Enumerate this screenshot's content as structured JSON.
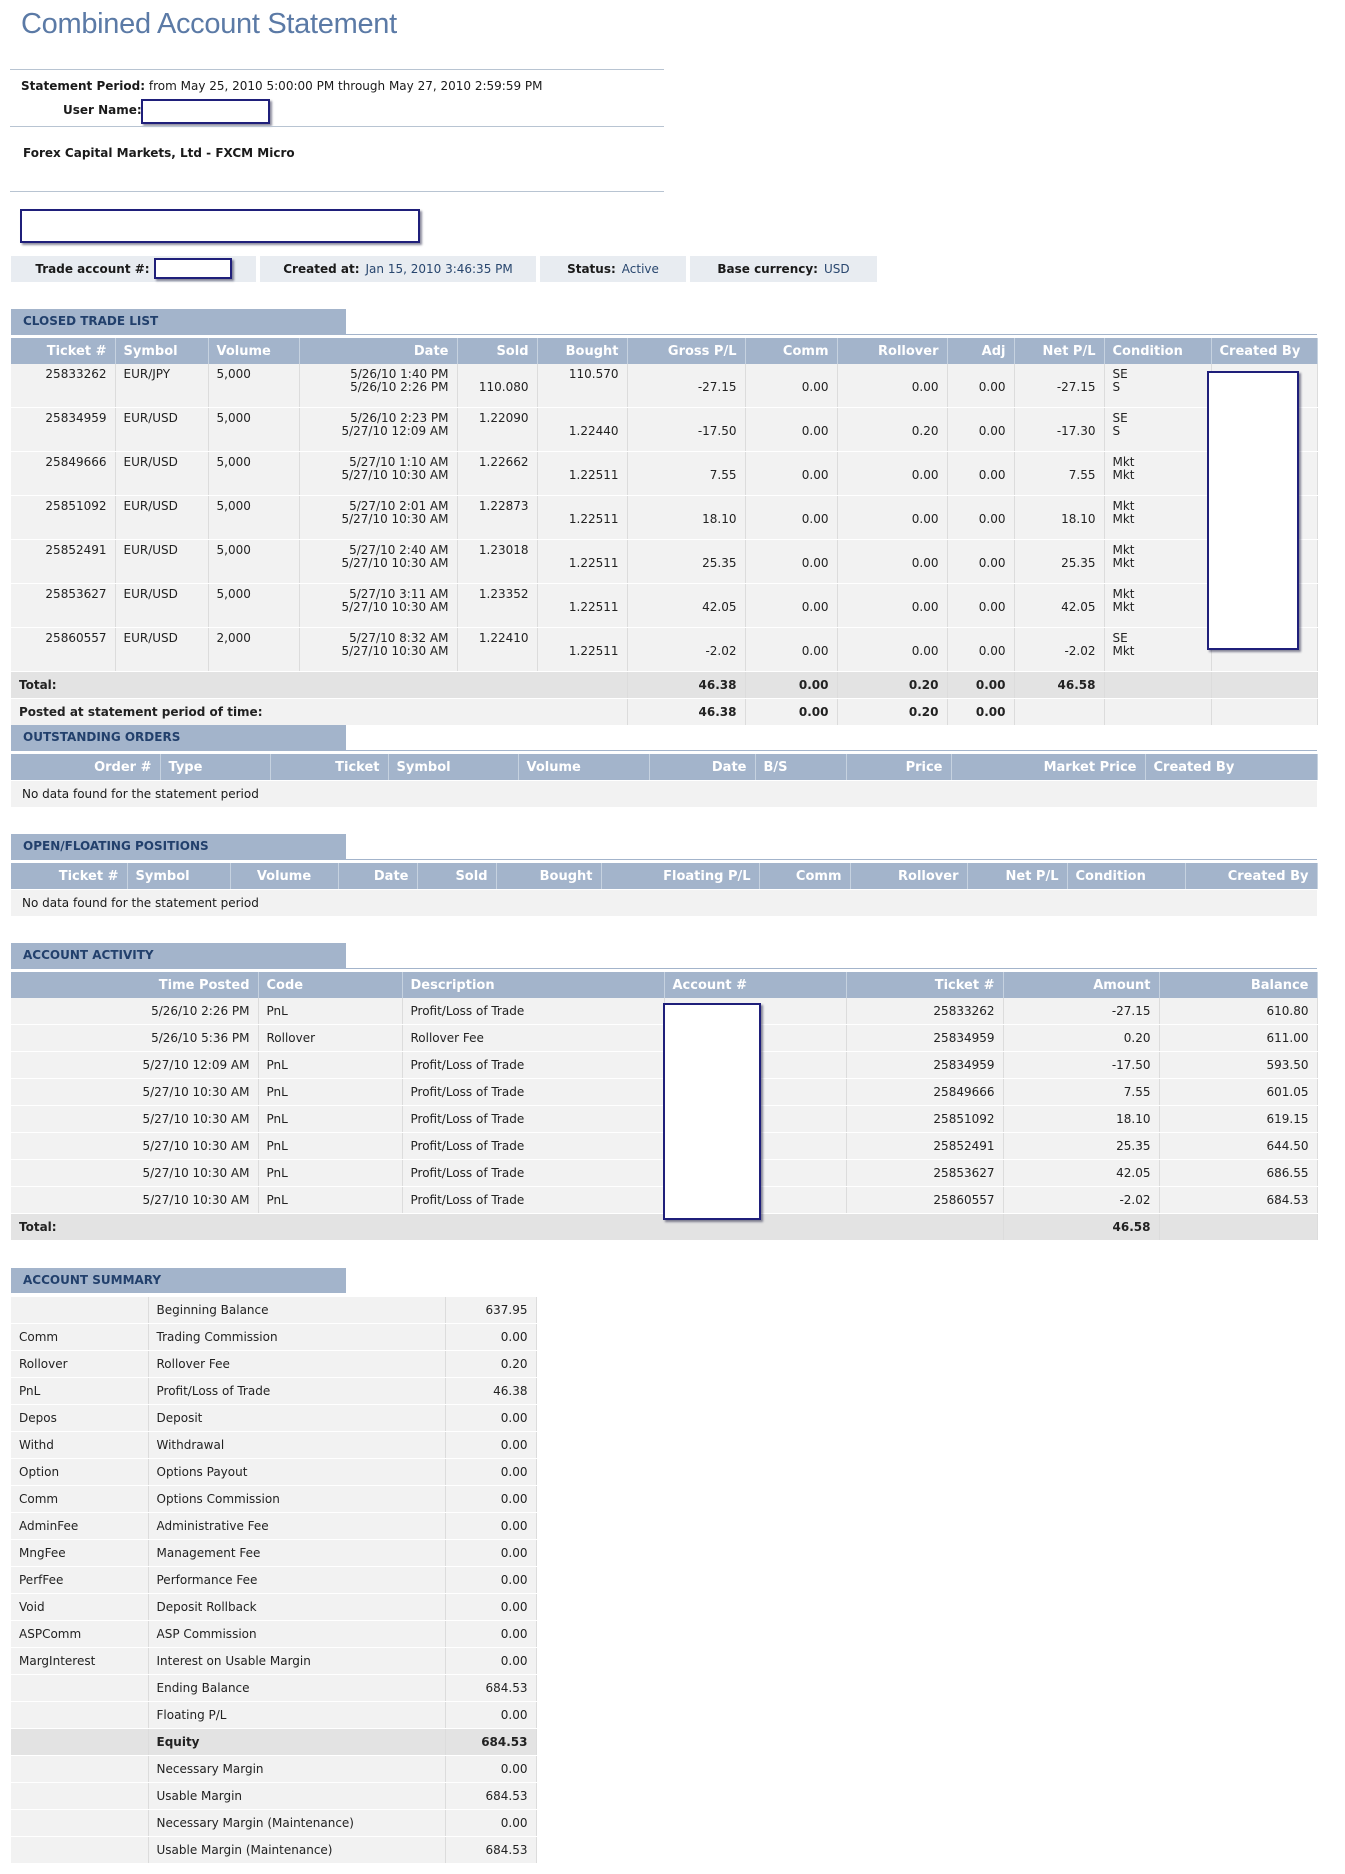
{
  "title": "Combined Account Statement",
  "statement": {
    "period_label": "Statement Period:",
    "period_value": "from May 25, 2010 5:00:00 PM through May 27, 2010 2:59:59 PM",
    "user_label": "User Name:",
    "broker": "Forex Capital Markets, Ltd - FXCM Micro"
  },
  "account_bar": {
    "trade_account_label": "Trade account #:",
    "created_label": "Created at:",
    "created_value": "Jan 15, 2010 3:46:35 PM",
    "status_label": "Status:",
    "status_value": "Active",
    "currency_label": "Base currency:",
    "currency_value": "USD"
  },
  "closed_trades": {
    "header": "CLOSED TRADE LIST",
    "columns": [
      "Ticket #",
      "Symbol",
      "Volume",
      "Date",
      "Sold",
      "Bought",
      "Gross P/L",
      "Comm",
      "Rollover",
      "Adj",
      "Net P/L",
      "Condition",
      "Created By"
    ],
    "rows": [
      {
        "ticket": "25833262",
        "symbol": "EUR/JPY",
        "volume": "5,000",
        "date1": "5/26/10 1:40 PM",
        "date2": "5/26/10 2:26 PM",
        "sold1": "",
        "sold2": "110.080",
        "bought1": "110.570",
        "bought2": "",
        "gross": "-27.15",
        "comm": "0.00",
        "rollover": "0.00",
        "adj": "0.00",
        "net": "-27.15",
        "cond1": "SE",
        "cond2": "S"
      },
      {
        "ticket": "25834959",
        "symbol": "EUR/USD",
        "volume": "5,000",
        "date1": "5/26/10 2:23 PM",
        "date2": "5/27/10 12:09 AM",
        "sold1": "1.22090",
        "sold2": "",
        "bought1": "",
        "bought2": "1.22440",
        "gross": "-17.50",
        "comm": "0.00",
        "rollover": "0.20",
        "adj": "0.00",
        "net": "-17.30",
        "cond1": "SE",
        "cond2": "S"
      },
      {
        "ticket": "25849666",
        "symbol": "EUR/USD",
        "volume": "5,000",
        "date1": "5/27/10 1:10 AM",
        "date2": "5/27/10 10:30 AM",
        "sold1": "1.22662",
        "sold2": "",
        "bought1": "",
        "bought2": "1.22511",
        "gross": "7.55",
        "comm": "0.00",
        "rollover": "0.00",
        "adj": "0.00",
        "net": "7.55",
        "cond1": "Mkt",
        "cond2": "Mkt"
      },
      {
        "ticket": "25851092",
        "symbol": "EUR/USD",
        "volume": "5,000",
        "date1": "5/27/10 2:01 AM",
        "date2": "5/27/10 10:30 AM",
        "sold1": "1.22873",
        "sold2": "",
        "bought1": "",
        "bought2": "1.22511",
        "gross": "18.10",
        "comm": "0.00",
        "rollover": "0.00",
        "adj": "0.00",
        "net": "18.10",
        "cond1": "Mkt",
        "cond2": "Mkt"
      },
      {
        "ticket": "25852491",
        "symbol": "EUR/USD",
        "volume": "5,000",
        "date1": "5/27/10 2:40 AM",
        "date2": "5/27/10 10:30 AM",
        "sold1": "1.23018",
        "sold2": "",
        "bought1": "",
        "bought2": "1.22511",
        "gross": "25.35",
        "comm": "0.00",
        "rollover": "0.00",
        "adj": "0.00",
        "net": "25.35",
        "cond1": "Mkt",
        "cond2": "Mkt"
      },
      {
        "ticket": "25853627",
        "symbol": "EUR/USD",
        "volume": "5,000",
        "date1": "5/27/10 3:11 AM",
        "date2": "5/27/10 10:30 AM",
        "sold1": "1.23352",
        "sold2": "",
        "bought1": "",
        "bought2": "1.22511",
        "gross": "42.05",
        "comm": "0.00",
        "rollover": "0.00",
        "adj": "0.00",
        "net": "42.05",
        "cond1": "Mkt",
        "cond2": "Mkt"
      },
      {
        "ticket": "25860557",
        "symbol": "EUR/USD",
        "volume": "2,000",
        "date1": "5/27/10 8:32 AM",
        "date2": "5/27/10 10:30 AM",
        "sold1": "1.22410",
        "sold2": "",
        "bought1": "",
        "bought2": "1.22511",
        "gross": "-2.02",
        "comm": "0.00",
        "rollover": "0.00",
        "adj": "0.00",
        "net": "-2.02",
        "cond1": "SE",
        "cond2": "Mkt"
      }
    ],
    "total": {
      "label": "Total:",
      "gross": "46.38",
      "comm": "0.00",
      "rollover": "0.20",
      "adj": "0.00",
      "net": "46.58"
    },
    "posted": {
      "label": "Posted at statement period of time:",
      "gross": "46.38",
      "comm": "0.00",
      "rollover": "0.20",
      "adj": "0.00"
    }
  },
  "outstanding_orders": {
    "header": "OUTSTANDING ORDERS",
    "columns": [
      "Order #",
      "Type",
      "Ticket",
      "Symbol",
      "Volume",
      "Date",
      "B/S",
      "Price",
      "Market Price",
      "Created By"
    ],
    "empty": "No data found for the statement period"
  },
  "open_positions": {
    "header": "OPEN/FLOATING POSITIONS",
    "columns": [
      "Ticket #",
      "Symbol",
      "Volume",
      "Date",
      "Sold",
      "Bought",
      "Floating P/L",
      "Comm",
      "Rollover",
      "Net P/L",
      "Condition",
      "Created By"
    ],
    "empty": "No data found for the statement period"
  },
  "account_activity": {
    "header": "ACCOUNT ACTIVITY",
    "columns": [
      "Time Posted",
      "Code",
      "Description",
      "Account #",
      "Ticket #",
      "Amount",
      "Balance"
    ],
    "rows": [
      {
        "time": "5/26/10 2:26 PM",
        "code": "PnL",
        "desc": "Profit/Loss of Trade",
        "ticket": "25833262",
        "amount": "-27.15",
        "balance": "610.80"
      },
      {
        "time": "5/26/10 5:36 PM",
        "code": "Rollover",
        "desc": "Rollover Fee",
        "ticket": "25834959",
        "amount": "0.20",
        "balance": "611.00"
      },
      {
        "time": "5/27/10 12:09 AM",
        "code": "PnL",
        "desc": "Profit/Loss of Trade",
        "ticket": "25834959",
        "amount": "-17.50",
        "balance": "593.50"
      },
      {
        "time": "5/27/10 10:30 AM",
        "code": "PnL",
        "desc": "Profit/Loss of Trade",
        "ticket": "25849666",
        "amount": "7.55",
        "balance": "601.05"
      },
      {
        "time": "5/27/10 10:30 AM",
        "code": "PnL",
        "desc": "Profit/Loss of Trade",
        "ticket": "25851092",
        "amount": "18.10",
        "balance": "619.15"
      },
      {
        "time": "5/27/10 10:30 AM",
        "code": "PnL",
        "desc": "Profit/Loss of Trade",
        "ticket": "25852491",
        "amount": "25.35",
        "balance": "644.50"
      },
      {
        "time": "5/27/10 10:30 AM",
        "code": "PnL",
        "desc": "Profit/Loss of Trade",
        "ticket": "25853627",
        "amount": "42.05",
        "balance": "686.55"
      },
      {
        "time": "5/27/10 10:30 AM",
        "code": "PnL",
        "desc": "Profit/Loss of Trade",
        "ticket": "25860557",
        "amount": "-2.02",
        "balance": "684.53"
      }
    ],
    "total": {
      "label": "Total:",
      "amount": "46.58"
    }
  },
  "account_summary": {
    "header": "ACCOUNT SUMMARY",
    "rows": [
      {
        "code": "",
        "desc": "Beginning Balance",
        "value": "637.95"
      },
      {
        "code": "Comm",
        "desc": "Trading Commission",
        "value": "0.00"
      },
      {
        "code": "Rollover",
        "desc": "Rollover Fee",
        "value": "0.20"
      },
      {
        "code": "PnL",
        "desc": "Profit/Loss of Trade",
        "value": "46.38"
      },
      {
        "code": "Depos",
        "desc": "Deposit",
        "value": "0.00"
      },
      {
        "code": "Withd",
        "desc": "Withdrawal",
        "value": "0.00"
      },
      {
        "code": "Option",
        "desc": "Options Payout",
        "value": "0.00"
      },
      {
        "code": "Comm",
        "desc": "Options Commission",
        "value": "0.00"
      },
      {
        "code": "AdminFee",
        "desc": "Administrative Fee",
        "value": "0.00"
      },
      {
        "code": "MngFee",
        "desc": "Management Fee",
        "value": "0.00"
      },
      {
        "code": "PerfFee",
        "desc": "Performance Fee",
        "value": "0.00"
      },
      {
        "code": "Void",
        "desc": "Deposit Rollback",
        "value": "0.00"
      },
      {
        "code": "ASPComm",
        "desc": "ASP Commission",
        "value": "0.00"
      },
      {
        "code": "MargInterest",
        "desc": "Interest on Usable Margin",
        "value": "0.00"
      },
      {
        "code": "",
        "desc": "Ending Balance",
        "value": "684.53"
      },
      {
        "code": "",
        "desc": "Floating P/L",
        "value": "0.00"
      },
      {
        "code": "",
        "desc": "Equity",
        "value": "684.53",
        "bold": true
      },
      {
        "code": "",
        "desc": "Necessary Margin",
        "value": "0.00"
      },
      {
        "code": "",
        "desc": "Usable Margin",
        "value": "684.53"
      },
      {
        "code": "",
        "desc": "Necessary Margin (Maintenance)",
        "value": "0.00"
      },
      {
        "code": "",
        "desc": "Usable Margin (Maintenance)",
        "value": "684.53"
      }
    ]
  }
}
